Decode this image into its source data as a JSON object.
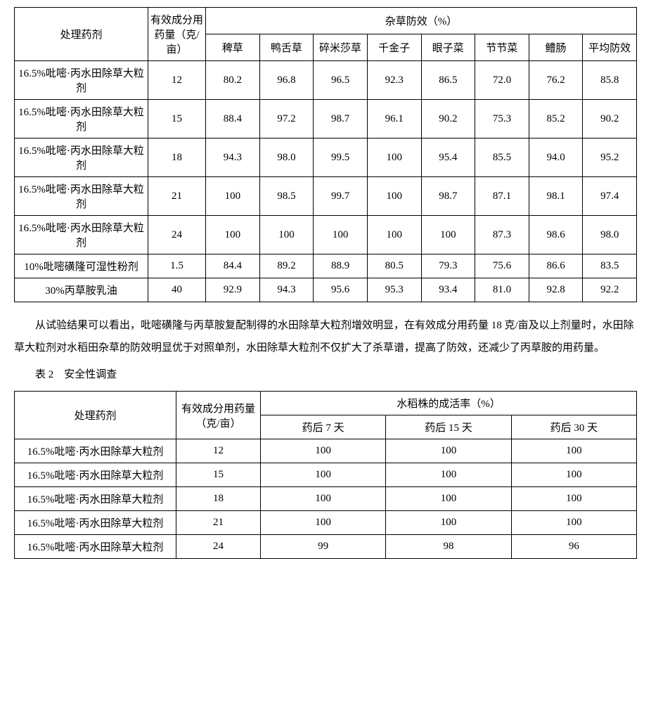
{
  "table1": {
    "head_agent": "处理药剂",
    "head_dose": "有效成分用药量（克/亩）",
    "head_efficacy": "杂草防效（%）",
    "cols": [
      "稗草",
      "鸭舌草",
      "碎米莎草",
      "千金子",
      "眼子菜",
      "节节菜",
      "鳢肠",
      "平均防效"
    ],
    "rows": [
      {
        "agent": "16.5%吡嘧·丙水田除草大粒剂",
        "dose": "12",
        "v": [
          "80.2",
          "96.8",
          "96.5",
          "92.3",
          "86.5",
          "72.0",
          "76.2",
          "85.8"
        ]
      },
      {
        "agent": "16.5%吡嘧·丙水田除草大粒剂",
        "dose": "15",
        "v": [
          "88.4",
          "97.2",
          "98.7",
          "96.1",
          "90.2",
          "75.3",
          "85.2",
          "90.2"
        ]
      },
      {
        "agent": "16.5%吡嘧·丙水田除草大粒剂",
        "dose": "18",
        "v": [
          "94.3",
          "98.0",
          "99.5",
          "100",
          "95.4",
          "85.5",
          "94.0",
          "95.2"
        ]
      },
      {
        "agent": "16.5%吡嘧·丙水田除草大粒剂",
        "dose": "21",
        "v": [
          "100",
          "98.5",
          "99.7",
          "100",
          "98.7",
          "87.1",
          "98.1",
          "97.4"
        ]
      },
      {
        "agent": "16.5%吡嘧·丙水田除草大粒剂",
        "dose": "24",
        "v": [
          "100",
          "100",
          "100",
          "100",
          "100",
          "87.3",
          "98.6",
          "98.0"
        ]
      },
      {
        "agent": "10%吡嘧磺隆可湿性粉剂",
        "dose": "1.5",
        "v": [
          "84.4",
          "89.2",
          "88.9",
          "80.5",
          "79.3",
          "75.6",
          "86.6",
          "83.5"
        ]
      },
      {
        "agent": "30%丙草胺乳油",
        "dose": "40",
        "v": [
          "92.9",
          "94.3",
          "95.6",
          "95.3",
          "93.4",
          "81.0",
          "92.8",
          "92.2"
        ]
      }
    ]
  },
  "paragraph": "从试验结果可以看出，吡嘧磺隆与丙草胺复配制得的水田除草大粒剂增效明显，在有效成分用药量 18 克/亩及以上剂量时，水田除草大粒剂对水稻田杂草的防效明显优于对照单剂，水田除草大粒剂不仅扩大了杀草谱，提高了防效，还减少了丙草胺的用药量。",
  "table2_caption": "表 2　安全性调查",
  "table2": {
    "head_agent": "处理药剂",
    "head_dose": "有效成分用药量（克/亩）",
    "head_survival": "水稻株的成活率（%）",
    "cols": [
      "药后 7 天",
      "药后 15 天",
      "药后 30 天"
    ],
    "rows": [
      {
        "agent": "16.5%吡嘧·丙水田除草大粒剂",
        "dose": "12",
        "v": [
          "100",
          "100",
          "100"
        ]
      },
      {
        "agent": "16.5%吡嘧·丙水田除草大粒剂",
        "dose": "15",
        "v": [
          "100",
          "100",
          "100"
        ]
      },
      {
        "agent": "16.5%吡嘧·丙水田除草大粒剂",
        "dose": "18",
        "v": [
          "100",
          "100",
          "100"
        ]
      },
      {
        "agent": "16.5%吡嘧·丙水田除草大粒剂",
        "dose": "21",
        "v": [
          "100",
          "100",
          "100"
        ]
      },
      {
        "agent": "16.5%吡嘧·丙水田除草大粒剂",
        "dose": "24",
        "v": [
          "99",
          "98",
          "96"
        ]
      }
    ]
  }
}
